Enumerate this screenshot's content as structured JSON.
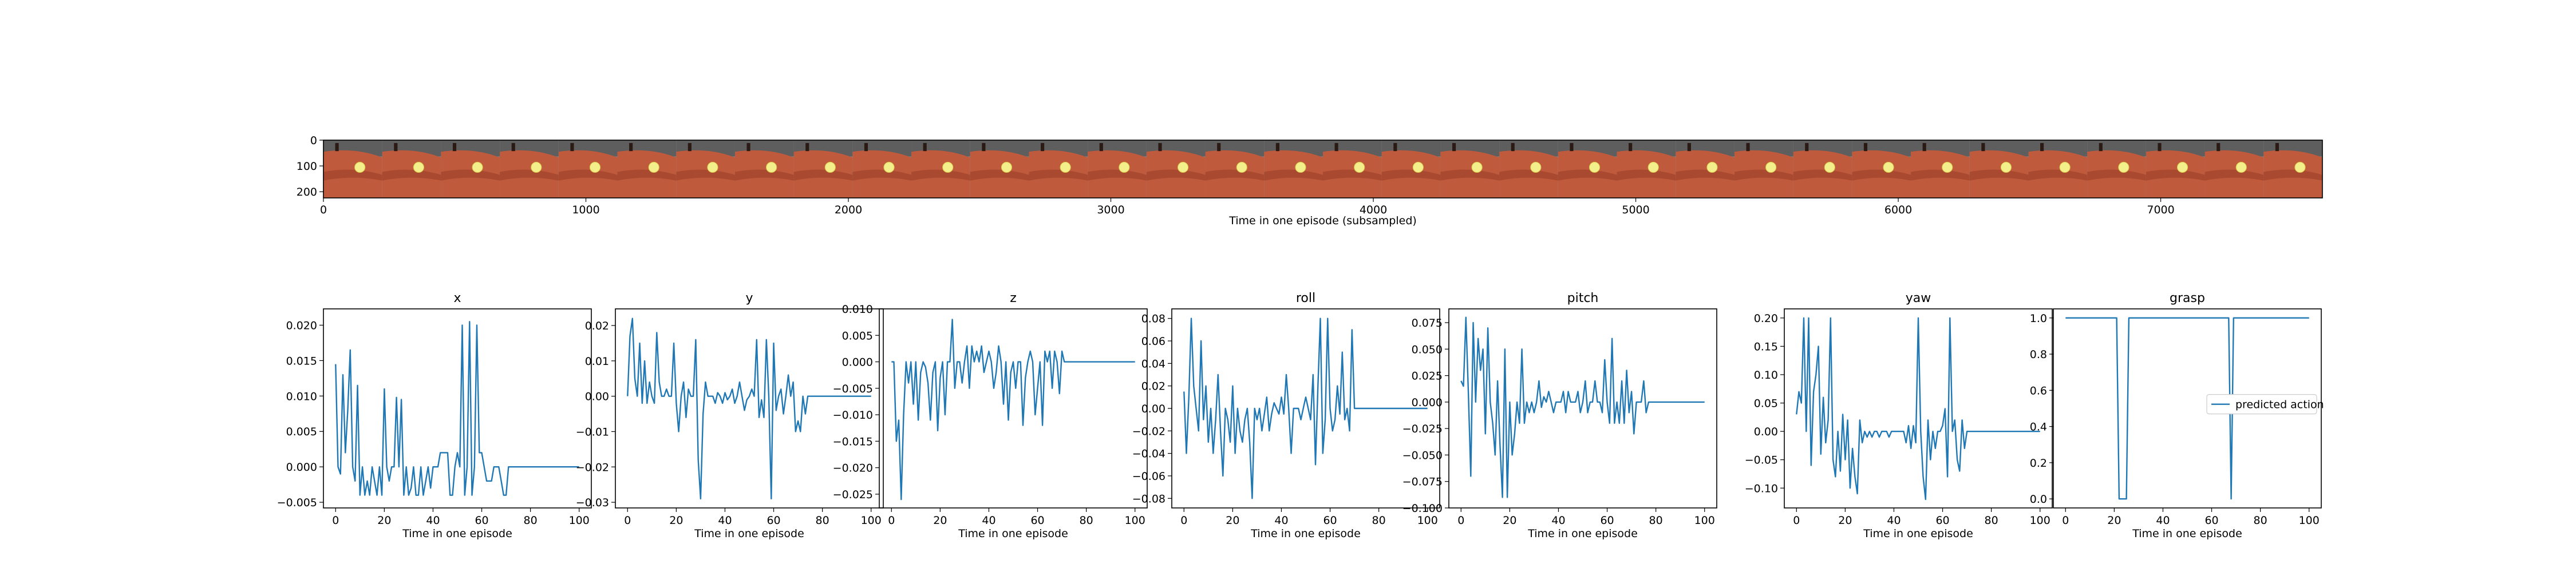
{
  "image_strip": {
    "xlabel": "Time in one episode (subsampled)",
    "xticks": [
      0,
      1000,
      2000,
      3000,
      4000,
      5000,
      6000,
      7000
    ],
    "yticks": [
      0,
      100,
      200
    ],
    "x_range": [
      0,
      7616
    ],
    "y_range": [
      0,
      224
    ],
    "frame_count": 34,
    "frame_width": 224
  },
  "chart_data": [
    {
      "type": "line",
      "title": "x",
      "xlabel": "Time in one episode",
      "ylabel": "",
      "xlim": [
        -5,
        105
      ],
      "ylim": [
        -0.0058,
        0.0223
      ],
      "xticks": [
        0,
        20,
        40,
        60,
        80,
        100
      ],
      "yticks": [
        -0.005,
        0.0,
        0.005,
        0.01,
        0.015,
        0.02
      ],
      "ytick_labels": [
        "−0.005",
        "0.000",
        "0.005",
        "0.010",
        "0.015",
        "0.020"
      ],
      "series": [
        {
          "name": "predicted action",
          "color": "#1f77b4",
          "values": [
            0.0145,
            0.0,
            -0.001,
            0.013,
            0.002,
            0.008,
            0.0165,
            0.0,
            -0.002,
            0.0115,
            -0.004,
            0.0,
            -0.004,
            -0.002,
            -0.004,
            0.0,
            -0.002,
            -0.004,
            0.0,
            -0.004,
            0.011,
            0.0,
            -0.002,
            0.0,
            0.0,
            0.0098,
            0.0,
            0.0095,
            -0.004,
            0.0,
            -0.004,
            -0.003,
            0.0,
            -0.004,
            -0.004,
            0.0,
            -0.004,
            -0.002,
            0.0,
            -0.003,
            0.0,
            0.0,
            0.0,
            0.002,
            0.002,
            0.002,
            0.002,
            -0.004,
            -0.004,
            0.0,
            0.002,
            0.0,
            0.02,
            -0.004,
            0.0,
            0.0205,
            -0.004,
            0.0,
            0.02,
            0.002,
            0.002,
            0.0,
            -0.002,
            -0.002,
            -0.002,
            0.0,
            0.0,
            0.0,
            -0.002,
            -0.004,
            -0.004,
            0.0,
            0.0,
            0.0,
            0.0,
            0.0,
            0.0,
            0.0,
            0.0,
            0.0,
            0.0,
            0.0,
            0.0,
            0.0,
            0.0,
            0.0,
            0.0,
            0.0,
            0.0,
            0.0,
            0.0,
            0.0,
            0.0,
            0.0,
            0.0,
            0.0,
            0.0,
            0.0,
            0.0,
            0.0,
            0.0
          ]
        }
      ]
    },
    {
      "type": "line",
      "title": "y",
      "xlabel": "Time in one episode",
      "ylabel": "",
      "xlim": [
        -5,
        105
      ],
      "ylim": [
        -0.0316,
        0.0247
      ],
      "xticks": [
        0,
        20,
        40,
        60,
        80,
        100
      ],
      "yticks": [
        -0.03,
        -0.02,
        -0.01,
        0.0,
        0.01,
        0.02
      ],
      "ytick_labels": [
        "−0.03",
        "−0.02",
        "−0.01",
        "0.00",
        "0.01",
        "0.02"
      ],
      "series": [
        {
          "name": "predicted action",
          "color": "#1f77b4",
          "values": [
            0.0,
            0.017,
            0.022,
            0.005,
            0.0,
            0.015,
            -0.002,
            0.01,
            -0.002,
            0.004,
            0.0,
            -0.002,
            0.018,
            0.004,
            0.0,
            0.0,
            0.002,
            0.0,
            0.0,
            0.015,
            -0.002,
            -0.01,
            0.0,
            0.004,
            -0.006,
            0.002,
            0.0,
            0.0,
            0.016,
            -0.018,
            -0.029,
            -0.005,
            0.004,
            0.0,
            0.0,
            0.0,
            -0.002,
            0.001,
            0.0,
            -0.002,
            0.001,
            -0.001,
            0.0,
            0.002,
            -0.002,
            0.0,
            0.004,
            0.0,
            -0.004,
            -0.001,
            0.0,
            0.002,
            0.0,
            0.016,
            -0.006,
            -0.001,
            -0.006,
            0.016,
            0.0,
            -0.029,
            0.015,
            -0.004,
            0.0,
            0.002,
            -0.005,
            0.0,
            0.006,
            0.0,
            0.004,
            -0.01,
            -0.007,
            -0.01,
            0.0,
            -0.005,
            0.0,
            0.0,
            0.0,
            0.0,
            0.0,
            0.0,
            0.0,
            0.0,
            0.0,
            0.0,
            0.0,
            0.0,
            0.0,
            0.0,
            0.0,
            0.0,
            0.0,
            0.0,
            0.0,
            0.0,
            0.0,
            0.0,
            0.0,
            0.0,
            0.0,
            0.0,
            0.0
          ]
        }
      ]
    },
    {
      "type": "line",
      "title": "z",
      "xlabel": "Time in one episode",
      "ylabel": "",
      "xlim": [
        -5,
        105
      ],
      "ylim": [
        -0.0276,
        0.01
      ],
      "xticks": [
        0,
        20,
        40,
        60,
        80,
        100
      ],
      "yticks": [
        -0.025,
        -0.02,
        -0.015,
        -0.01,
        -0.005,
        0.0,
        0.005,
        0.01
      ],
      "ytick_labels": [
        "−0.025",
        "−0.020",
        "−0.015",
        "−0.010",
        "−0.005",
        "0.000",
        "0.005",
        "0.010"
      ],
      "series": [
        {
          "name": "predicted action",
          "color": "#1f77b4",
          "values": [
            0.0,
            0.0,
            -0.015,
            -0.011,
            -0.026,
            -0.01,
            0.0,
            -0.004,
            0.0,
            -0.008,
            0.0,
            -0.011,
            -0.002,
            0.0,
            -0.001,
            -0.004,
            -0.011,
            -0.002,
            0.0,
            -0.013,
            -0.003,
            0.0,
            -0.01,
            0.0,
            0.0,
            0.008,
            -0.005,
            0.0,
            0.0,
            -0.004,
            0.0,
            0.003,
            -0.005,
            0.003,
            0.0,
            0.002,
            0.0,
            0.003,
            -0.002,
            0.0,
            0.002,
            0.0,
            -0.005,
            -0.002,
            0.003,
            0.0,
            -0.008,
            0.0,
            -0.011,
            -0.002,
            0.0,
            -0.005,
            0.0,
            0.0,
            -0.012,
            -0.003,
            0.0,
            0.002,
            0.0,
            -0.01,
            -0.005,
            0.0,
            -0.012,
            0.002,
            0.0,
            0.002,
            -0.005,
            0.002,
            0.0,
            -0.006,
            0.002,
            0.0,
            0.0,
            0.0,
            0.0,
            0.0,
            0.0,
            0.0,
            0.0,
            0.0,
            0.0,
            0.0,
            0.0,
            0.0,
            0.0,
            0.0,
            0.0,
            0.0,
            0.0,
            0.0,
            0.0,
            0.0,
            0.0,
            0.0,
            0.0,
            0.0,
            0.0,
            0.0,
            0.0,
            0.0,
            0.0
          ]
        }
      ]
    },
    {
      "type": "line",
      "title": "roll",
      "xlabel": "Time in one episode",
      "ylabel": "",
      "xlim": [
        -5,
        105
      ],
      "ylim": [
        -0.0885,
        0.0885
      ],
      "xticks": [
        0,
        20,
        40,
        60,
        80,
        100
      ],
      "yticks": [
        -0.08,
        -0.06,
        -0.04,
        -0.02,
        0.0,
        0.02,
        0.04,
        0.06,
        0.08
      ],
      "ytick_labels": [
        "−0.08",
        "−0.06",
        "−0.04",
        "−0.02",
        "0.00",
        "0.02",
        "0.04",
        "0.06",
        "0.08"
      ],
      "series": [
        {
          "name": "predicted action",
          "color": "#1f77b4",
          "values": [
            0.015,
            -0.04,
            0.01,
            0.08,
            0.02,
            0.0,
            -0.02,
            0.06,
            -0.01,
            0.02,
            -0.03,
            0.0,
            -0.04,
            -0.01,
            0.03,
            -0.02,
            -0.06,
            0.0,
            -0.01,
            -0.03,
            0.02,
            -0.04,
            0.0,
            -0.02,
            -0.03,
            -0.01,
            0.0,
            -0.03,
            -0.08,
            0.0,
            -0.01,
            0.0,
            -0.02,
            -0.005,
            0.01,
            -0.02,
            -0.005,
            0.005,
            0.0,
            -0.005,
            0.01,
            -0.005,
            0.03,
            0.0,
            -0.04,
            0.0,
            0.0,
            0.0,
            -0.01,
            0.0,
            0.01,
            0.0,
            -0.01,
            0.03,
            -0.05,
            0.02,
            0.08,
            -0.04,
            -0.01,
            0.08,
            0.0,
            -0.02,
            -0.01,
            0.02,
            -0.005,
            0.05,
            -0.01,
            0.0,
            -0.02,
            0.07,
            0.0,
            0.0,
            0.0,
            0.0,
            0.0,
            0.0,
            0.0,
            0.0,
            0.0,
            0.0,
            0.0,
            0.0,
            0.0,
            0.0,
            0.0,
            0.0,
            0.0,
            0.0,
            0.0,
            0.0,
            0.0,
            0.0,
            0.0,
            0.0,
            0.0,
            0.0,
            0.0,
            0.0,
            0.0,
            0.0,
            0.0
          ]
        }
      ]
    },
    {
      "type": "line",
      "title": "pitch",
      "xlabel": "Time in one episode",
      "ylabel": "",
      "xlim": [
        -5,
        105
      ],
      "ylim": [
        -0.1,
        0.088
      ],
      "xticks": [
        0,
        20,
        40,
        60,
        80,
        100
      ],
      "yticks": [
        -0.1,
        -0.075,
        -0.05,
        -0.025,
        0.0,
        0.025,
        0.05,
        0.075
      ],
      "ytick_labels": [
        "−0.100",
        "−0.075",
        "−0.050",
        "−0.025",
        "0.000",
        "0.025",
        "0.050",
        "0.075"
      ],
      "series": [
        {
          "name": "predicted action",
          "color": "#1f77b4",
          "values": [
            0.02,
            0.015,
            0.08,
            0.01,
            -0.07,
            0.075,
            0.0,
            0.06,
            0.03,
            0.05,
            -0.03,
            0.07,
            0.0,
            -0.02,
            -0.05,
            0.02,
            -0.04,
            -0.09,
            0.05,
            -0.09,
            0.0,
            -0.05,
            -0.03,
            0.0,
            -0.02,
            0.05,
            -0.02,
            0.0,
            -0.01,
            0.0,
            -0.01,
            0.0,
            0.02,
            -0.005,
            0.005,
            0.0,
            0.01,
            0.0,
            -0.01,
            0.0,
            0.0,
            0.0,
            0.01,
            -0.01,
            0.01,
            0.0,
            0.0,
            0.0,
            0.01,
            -0.01,
            0.0,
            0.02,
            -0.01,
            0.0,
            0.0,
            0.02,
            0.0,
            0.0,
            -0.01,
            0.04,
            0.0,
            -0.02,
            0.06,
            -0.02,
            0.0,
            -0.02,
            0.02,
            -0.02,
            0.03,
            -0.01,
            0.01,
            -0.03,
            0.0,
            0.0,
            0.0,
            0.02,
            -0.01,
            0.0,
            0.0,
            0.0,
            0.0,
            0.0,
            0.0,
            0.0,
            0.0,
            0.0,
            0.0,
            0.0,
            0.0,
            0.0,
            0.0,
            0.0,
            0.0,
            0.0,
            0.0,
            0.0,
            0.0,
            0.0,
            0.0,
            0.0,
            0.0
          ]
        }
      ]
    },
    {
      "type": "line",
      "title": "yaw",
      "xlabel": "Time in one episode",
      "ylabel": "",
      "xlim": [
        -5,
        105
      ],
      "ylim": [
        -0.135,
        0.216
      ],
      "xticks": [
        0,
        20,
        40,
        60,
        80,
        100
      ],
      "yticks": [
        -0.1,
        -0.05,
        0.0,
        0.05,
        0.1,
        0.15,
        0.2
      ],
      "ytick_labels": [
        "−0.10",
        "−0.05",
        "0.00",
        "0.05",
        "0.10",
        "0.15",
        "0.20"
      ],
      "series": [
        {
          "name": "predicted action",
          "color": "#1f77b4",
          "values": [
            0.03,
            0.07,
            0.05,
            0.2,
            0.0,
            0.2,
            -0.06,
            0.07,
            0.1,
            0.15,
            -0.04,
            0.06,
            -0.02,
            0.02,
            0.2,
            -0.05,
            -0.08,
            0.0,
            -0.07,
            0.03,
            -0.05,
            0.02,
            -0.1,
            -0.03,
            -0.08,
            -0.11,
            0.02,
            -0.02,
            0.0,
            -0.01,
            0.0,
            -0.01,
            0.0,
            0.0,
            -0.01,
            0.0,
            0.0,
            0.0,
            -0.01,
            0.0,
            0.0,
            0.0,
            0.0,
            0.0,
            0.0,
            -0.02,
            0.01,
            -0.03,
            0.01,
            -0.02,
            0.2,
            0.0,
            -0.08,
            -0.12,
            0.02,
            -0.05,
            0.0,
            -0.03,
            0.0,
            0.0,
            0.01,
            0.04,
            -0.08,
            0.2,
            0.0,
            0.02,
            -0.05,
            -0.07,
            0.02,
            -0.03,
            0.0,
            0.0,
            0.0,
            0.0,
            0.0,
            0.0,
            0.0,
            0.0,
            0.0,
            0.0,
            0.0,
            0.0,
            0.0,
            0.0,
            0.0,
            0.0,
            0.0,
            0.0,
            0.0,
            0.0,
            0.0,
            0.0,
            0.0,
            0.0,
            0.0,
            0.0,
            0.0,
            0.0,
            0.0,
            0.0,
            0.0
          ]
        }
      ]
    },
    {
      "type": "line",
      "title": "grasp",
      "xlabel": "Time in one episode",
      "ylabel": "",
      "xlim": [
        -5,
        105
      ],
      "ylim": [
        -0.05,
        1.05
      ],
      "xticks": [
        0,
        20,
        40,
        60,
        80,
        100
      ],
      "yticks": [
        0.0,
        0.2,
        0.4,
        0.6,
        0.8,
        1.0
      ],
      "ytick_labels": [
        "0.0",
        "0.2",
        "0.4",
        "0.6",
        "0.8",
        "1.0"
      ],
      "legend": {
        "label": "predicted action",
        "placement": "center-right"
      },
      "series": [
        {
          "name": "predicted action",
          "color": "#1f77b4",
          "values": [
            1,
            1,
            1,
            1,
            1,
            1,
            1,
            1,
            1,
            1,
            1,
            1,
            1,
            1,
            1,
            1,
            1,
            1,
            1,
            1,
            1,
            1,
            0,
            0,
            0,
            0,
            1,
            1,
            1,
            1,
            1,
            1,
            1,
            1,
            1,
            1,
            1,
            1,
            1,
            1,
            1,
            1,
            1,
            1,
            1,
            1,
            1,
            1,
            1,
            1,
            1,
            1,
            1,
            1,
            1,
            1,
            1,
            1,
            1,
            1,
            1,
            1,
            1,
            1,
            1,
            1,
            1,
            1,
            0,
            1,
            1,
            1,
            1,
            1,
            1,
            1,
            1,
            1,
            1,
            1,
            1,
            1,
            1,
            1,
            1,
            1,
            1,
            1,
            1,
            1,
            1,
            1,
            1,
            1,
            1,
            1,
            1,
            1,
            1,
            1,
            1
          ]
        }
      ]
    }
  ]
}
